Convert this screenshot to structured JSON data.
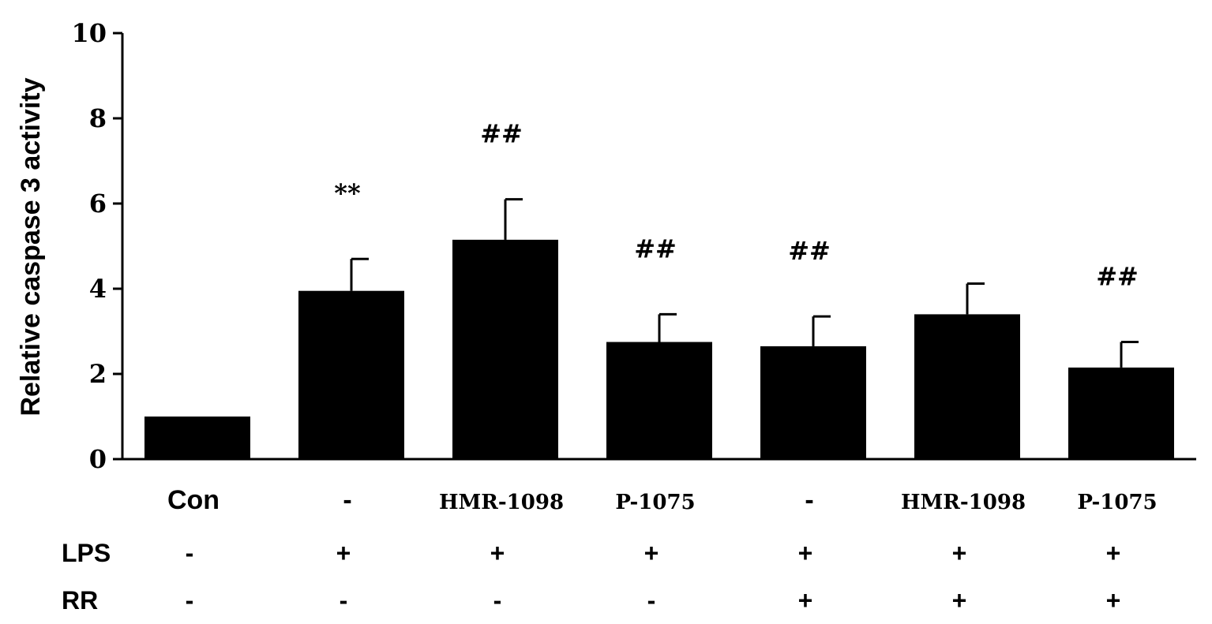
{
  "chart_data": {
    "type": "bar",
    "ylabel": "Relative caspase 3 activity",
    "xlabel": "",
    "ylim": [
      0,
      10
    ],
    "yticks": [
      "0",
      "2",
      "4",
      "6",
      "8",
      "10"
    ],
    "categories": [
      "Con",
      "-",
      "HMR-1098",
      "P-1075",
      "-",
      "HMR-1098",
      "P-1075"
    ],
    "values": [
      1.0,
      3.95,
      5.15,
      2.75,
      2.65,
      3.4,
      2.15
    ],
    "errors": [
      0.0,
      0.75,
      0.95,
      0.65,
      0.7,
      0.72,
      0.6
    ],
    "annotations": [
      "",
      "**",
      "##",
      "##",
      "##",
      "",
      "##"
    ],
    "bar_color": "#000000",
    "grid": false,
    "condition_rows": [
      {
        "label": "LPS",
        "values": [
          "-",
          "+",
          "+",
          "+",
          "+",
          "+",
          "+"
        ]
      },
      {
        "label": "RR",
        "values": [
          "-",
          "-",
          "-",
          "-",
          "+",
          "+",
          "+"
        ]
      }
    ]
  }
}
